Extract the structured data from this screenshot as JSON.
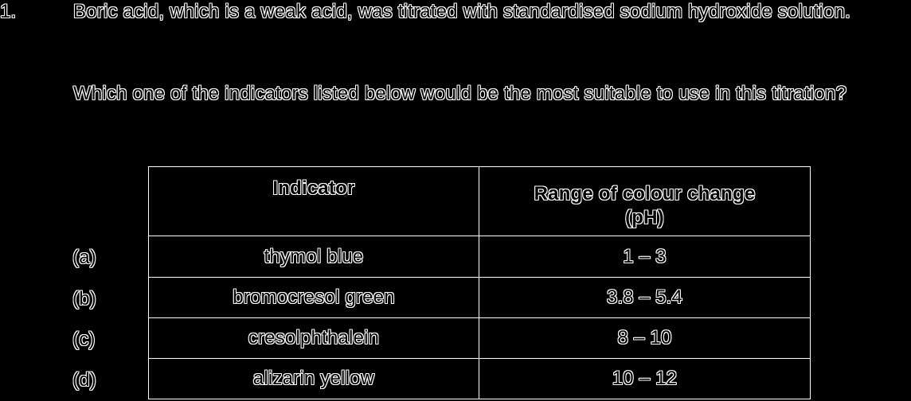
{
  "question": {
    "number": "1.",
    "paragraph_1": "Boric acid, which is a weak acid, was titrated with standardised sodium hydroxide solution.",
    "paragraph_2": "Which one of the indicators listed below would be the most suitable to use in this titration?"
  },
  "table": {
    "headers": {
      "indicator": "Indicator",
      "range_line1": "Range of colour change",
      "range_line2": "(pH)"
    },
    "rows": [
      {
        "option": "(a)",
        "indicator": "thymol blue",
        "range": "1 – 3"
      },
      {
        "option": "(b)",
        "indicator": "bromocresol green",
        "range": "3.8 – 5.4"
      },
      {
        "option": "(c)",
        "indicator": "cresolphthalein",
        "range": "8 – 10"
      },
      {
        "option": "(d)",
        "indicator": "alizarin yellow",
        "range": "10 – 12"
      }
    ]
  },
  "colors": {
    "background": "#000000",
    "text_outline": "#ffffff",
    "text_fill": "#000000"
  }
}
